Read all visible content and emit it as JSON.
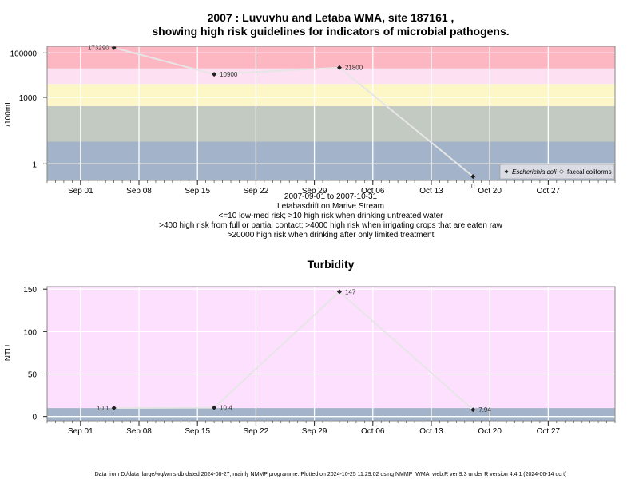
{
  "footer": "Data from D:/data_large/wq/wms.db dated 2024-08-27, mainly NMMP programme. Plotted on 2024-10-25 11:29:02 using NMMP_WMA_web.R ver 9.3 under R version 4.4.1 (2024-06-14 ucrt)",
  "chart_data": [
    {
      "type": "scatter",
      "title_lines": [
        "2007 : Luvuvhu and Letaba WMA, site 187161 ,",
        "showing high risk guidelines for indicators of microbial pathogens."
      ],
      "ylabel": "/100mL",
      "yscale": "log10",
      "ylim": [
        0.18,
        200000
      ],
      "yticks": [
        {
          "v": 1,
          "label": "1"
        },
        {
          "v": 1000,
          "label": "1000"
        },
        {
          "v": 100000,
          "label": "100000"
        }
      ],
      "xlim": [
        "2007-08-28",
        "2007-11-04"
      ],
      "xticks": [
        {
          "date": "2007-09-01",
          "label": "Sep 01"
        },
        {
          "date": "2007-09-08",
          "label": "Sep 08"
        },
        {
          "date": "2007-09-15",
          "label": "Sep 15"
        },
        {
          "date": "2007-09-22",
          "label": "Sep 22"
        },
        {
          "date": "2007-09-29",
          "label": "Sep 29"
        },
        {
          "date": "2007-10-06",
          "label": "Oct 06"
        },
        {
          "date": "2007-10-13",
          "label": "Oct 13"
        },
        {
          "date": "2007-10-20",
          "label": "Oct 20"
        },
        {
          "date": "2007-10-27",
          "label": "Oct 27"
        }
      ],
      "bands": [
        {
          "from": 0.18,
          "to": 10,
          "color": "#a3b3c9"
        },
        {
          "from": 10,
          "to": 400,
          "color": "#c3cac1"
        },
        {
          "from": 400,
          "to": 4000,
          "color": "#fdf7c8"
        },
        {
          "from": 4000,
          "to": 20000,
          "color": "#fde0f2"
        },
        {
          "from": 20000,
          "to": 200000,
          "color": "#fdb7c3"
        }
      ],
      "series": [
        {
          "name": "Escherichia coli",
          "x": [
            "2007-09-05",
            "2007-09-17",
            "2007-10-02",
            "2007-10-18"
          ],
          "y": [
            173290,
            10900,
            21800,
            0
          ],
          "labels": [
            "173290",
            "10900",
            "21800",
            "0"
          ],
          "label_side": [
            "left",
            "right",
            "right",
            "below"
          ]
        },
        {
          "name": "faecal coliforms",
          "x": [],
          "y": []
        }
      ],
      "below_lines": [
        "2007-09-01 to 2007-10-31",
        "Letabasdrift on Marive Stream",
        "<=10 low-med risk; >10 high risk when drinking untreated water",
        ">400 high risk from full or partial contact; >4000 high risk when irrigating crops that are eaten raw",
        ">20000 high risk when drinking after only limited treatment"
      ],
      "legend": "bottom-right",
      "grid": true
    },
    {
      "type": "scatter",
      "title": "Turbidity",
      "ylabel": "NTU",
      "ylim": [
        -5,
        153
      ],
      "yticks": [
        {
          "v": 0,
          "label": "0"
        },
        {
          "v": 50,
          "label": "50"
        },
        {
          "v": 100,
          "label": "100"
        },
        {
          "v": 150,
          "label": "150"
        }
      ],
      "xlim": [
        "2007-08-28",
        "2007-11-04"
      ],
      "xticks": [
        {
          "date": "2007-09-01",
          "label": "Sep 01"
        },
        {
          "date": "2007-09-08",
          "label": "Sep 08"
        },
        {
          "date": "2007-09-15",
          "label": "Sep 15"
        },
        {
          "date": "2007-09-22",
          "label": "Sep 22"
        },
        {
          "date": "2007-09-29",
          "label": "Sep 29"
        },
        {
          "date": "2007-10-06",
          "label": "Oct 06"
        },
        {
          "date": "2007-10-13",
          "label": "Oct 13"
        },
        {
          "date": "2007-10-20",
          "label": "Oct 20"
        },
        {
          "date": "2007-10-27",
          "label": "Oct 27"
        }
      ],
      "bands": [
        {
          "from": -5,
          "to": 10,
          "color": "#a3b3c9"
        },
        {
          "from": 10,
          "to": 153,
          "color": "#fde0fd"
        }
      ],
      "series": [
        {
          "x": [
            "2007-09-05",
            "2007-09-17",
            "2007-10-02",
            "2007-10-18"
          ],
          "y": [
            10.1,
            10.4,
            147,
            7.94
          ],
          "labels": [
            "10.1",
            "10.4",
            "147",
            "7.94"
          ],
          "label_side": [
            "left",
            "right",
            "right",
            "right"
          ]
        }
      ],
      "grid": true
    }
  ]
}
